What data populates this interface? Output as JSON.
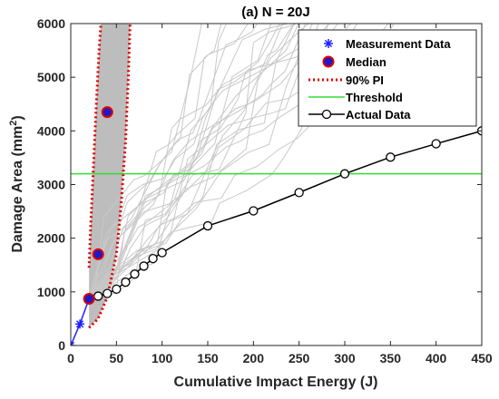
{
  "chart_data": {
    "type": "line",
    "title": "(a) N = 20J",
    "xlabel": "Cumulative Impact Energy (J)",
    "ylabel": "Damage Area (mm²)",
    "ylabel_parts": {
      "main": "Damage Area (mm",
      "sup": "2",
      "end": ")"
    },
    "xlim": [
      0,
      450
    ],
    "ylim": [
      0,
      6000
    ],
    "xticks": [
      0,
      50,
      100,
      150,
      200,
      250,
      300,
      350,
      400,
      450
    ],
    "yticks": [
      0,
      1000,
      2000,
      3000,
      4000,
      5000,
      6000
    ],
    "grid": false,
    "legend_position": "top-right",
    "legend": [
      {
        "label": "Measurement Data",
        "marker": "asterisk",
        "color": "#1f1fff"
      },
      {
        "label": "Median",
        "marker": "filled-circle",
        "color": "#1a1acc",
        "edge": "#e00000"
      },
      {
        "label": "90% PI",
        "style": "dotted",
        "color": "#e00000"
      },
      {
        "label": "Threshold",
        "style": "solid",
        "color": "#33dd33"
      },
      {
        "label": "Actual Data",
        "marker": "open-circle",
        "color": "#000000"
      }
    ],
    "series": [
      {
        "name": "Measurement Data",
        "x": [
          0,
          10,
          20
        ],
        "y": [
          0,
          400,
          870
        ]
      },
      {
        "name": "Median",
        "x": [
          20,
          30,
          40
        ],
        "y": [
          870,
          1700,
          4350
        ]
      },
      {
        "name": "90% PI",
        "lower": {
          "x": [
            20,
            30,
            40,
            50,
            55,
            60,
            63,
            65
          ],
          "y": [
            330,
            500,
            900,
            1700,
            2600,
            3800,
            5000,
            6000
          ]
        },
        "upper": {
          "x": [
            20,
            22,
            25,
            28,
            31,
            33
          ],
          "y": [
            1450,
            2300,
            3400,
            4500,
            5500,
            6000
          ]
        }
      },
      {
        "name": "Threshold",
        "y": 3200
      },
      {
        "name": "Actual Data",
        "x": [
          20,
          30,
          40,
          50,
          60,
          70,
          80,
          90,
          100,
          150,
          200,
          250,
          300,
          350,
          400,
          450
        ],
        "y": [
          870,
          920,
          970,
          1050,
          1180,
          1330,
          1480,
          1620,
          1730,
          2230,
          2510,
          2850,
          3200,
          3510,
          3760,
          4000
        ]
      }
    ],
    "colors": {
      "prediction_band": "#bdbdbd",
      "prediction_lines": "#c8c8c8",
      "axis": "#262626"
    }
  }
}
